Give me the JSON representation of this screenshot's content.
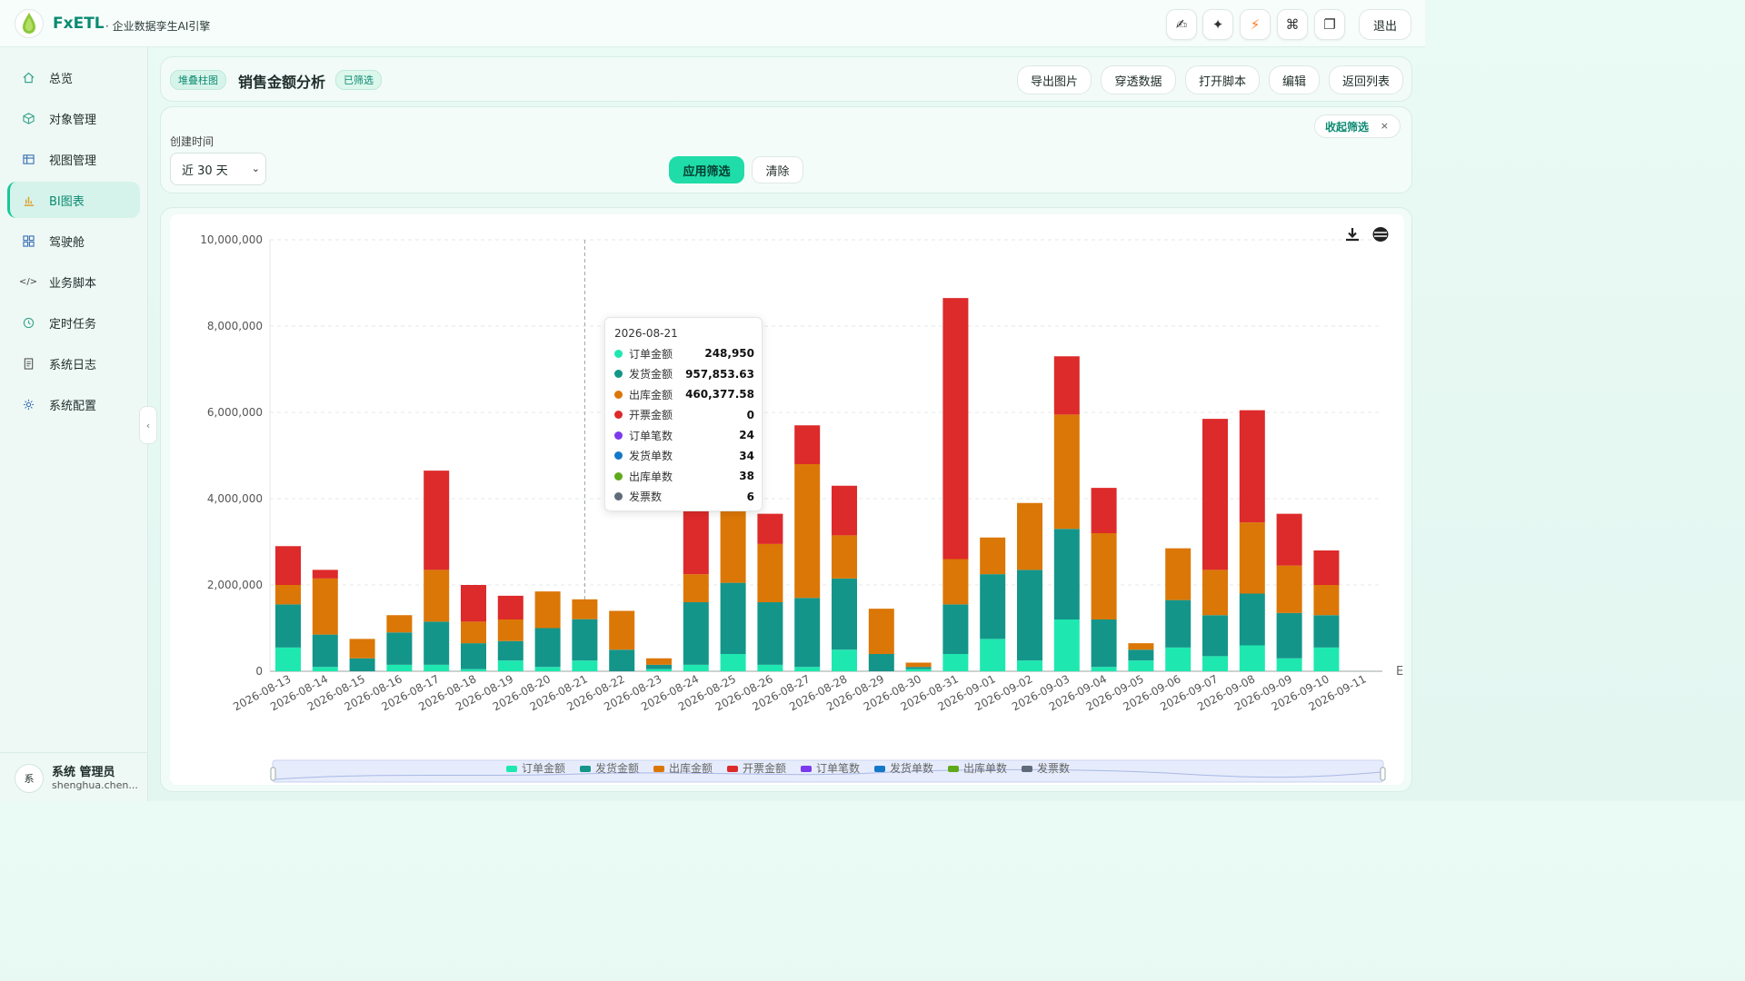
{
  "app": {
    "brand": "FxETL",
    "subtitle": "· 企业数据孪生AI引擎",
    "logout": "退出"
  },
  "toolbar_icons": [
    "signature-icon",
    "sparkle-icon",
    "bolt-icon",
    "command-icon",
    "window-icon"
  ],
  "sidebar": {
    "items": [
      {
        "label": "总览",
        "icon": "home-icon"
      },
      {
        "label": "对象管理",
        "icon": "cube-icon"
      },
      {
        "label": "视图管理",
        "icon": "table-icon"
      },
      {
        "label": "BI图表",
        "icon": "bar-chart-icon",
        "active": true
      },
      {
        "label": "驾驶舱",
        "icon": "grid-icon"
      },
      {
        "label": "业务脚本",
        "icon": "code-icon"
      },
      {
        "label": "定时任务",
        "icon": "clock-icon"
      },
      {
        "label": "系统日志",
        "icon": "doc-icon"
      },
      {
        "label": "系统配置",
        "icon": "gear-icon"
      }
    ],
    "user": {
      "avatar": "系",
      "name": "系统 管理员",
      "email": "shenghua.chen..."
    }
  },
  "header": {
    "type_tag": "堆叠柱图",
    "title": "销售金额分析",
    "filter_tag": "已筛选",
    "buttons": [
      "导出图片",
      "穿透数据",
      "打开脚本",
      "编辑",
      "返回列表"
    ]
  },
  "filter": {
    "label": "创建时间",
    "select_value": "近 30 天",
    "apply": "应用筛选",
    "clear": "清除",
    "collapse": "收起筛选",
    "collapse_x": "×"
  },
  "tooltip": {
    "date": "2026-08-21",
    "rows": [
      {
        "name": "订单金额",
        "value": "248,950",
        "color": "#1ee8b0"
      },
      {
        "name": "发货金额",
        "value": "957,853.63",
        "color": "#14958a"
      },
      {
        "name": "出库金额",
        "value": "460,377.58",
        "color": "#db7707"
      },
      {
        "name": "开票金额",
        "value": "0",
        "color": "#dd2a2a"
      },
      {
        "name": "订单笔数",
        "value": "24",
        "color": "#7c3aed"
      },
      {
        "name": "发货单数",
        "value": "34",
        "color": "#1478c8"
      },
      {
        "name": "出库单数",
        "value": "38",
        "color": "#5eaa1a"
      },
      {
        "name": "发票数",
        "value": "6",
        "color": "#5f6b78"
      }
    ]
  },
  "chart_data": {
    "type": "bar",
    "stacked": true,
    "categories": [
      "2026-08-13",
      "2026-08-14",
      "2026-08-15",
      "2026-08-16",
      "2026-08-17",
      "2026-08-18",
      "2026-08-19",
      "2026-08-20",
      "2026-08-21",
      "2026-08-22",
      "2026-08-23",
      "2026-08-24",
      "2026-08-25",
      "2026-08-26",
      "2026-08-27",
      "2026-08-28",
      "2026-08-29",
      "2026-08-30",
      "2026-08-31",
      "2026-09-01",
      "2026-09-02",
      "2026-09-03",
      "2026-09-04",
      "2026-09-05",
      "2026-09-06",
      "2026-09-07",
      "2026-09-08",
      "2026-09-09",
      "2026-09-10",
      "2026-09-11"
    ],
    "series": [
      {
        "name": "订单金额",
        "color": "#1ee8b0",
        "values": [
          550000,
          100000,
          0,
          150000,
          150000,
          50000,
          250000,
          100000,
          248950,
          0,
          50000,
          150000,
          400000,
          150000,
          100000,
          500000,
          0,
          50000,
          400000,
          750000,
          250000,
          1200000,
          100000,
          250000,
          550000,
          350000,
          600000,
          300000,
          550000,
          0
        ]
      },
      {
        "name": "发货金额",
        "color": "#14958a",
        "values": [
          1000000,
          750000,
          300000,
          750000,
          1000000,
          600000,
          450000,
          900000,
          957853.63,
          500000,
          100000,
          1450000,
          1650000,
          1450000,
          1600000,
          1650000,
          400000,
          50000,
          1150000,
          1500000,
          2100000,
          2100000,
          1100000,
          250000,
          1100000,
          950000,
          1200000,
          1050000,
          750000,
          0
        ]
      },
      {
        "name": "出库金额",
        "color": "#db7707",
        "values": [
          450000,
          1300000,
          450000,
          400000,
          1200000,
          500000,
          500000,
          850000,
          460377.58,
          900000,
          150000,
          650000,
          3100000,
          1350000,
          3100000,
          1000000,
          1050000,
          100000,
          1050000,
          850000,
          1550000,
          2650000,
          2000000,
          150000,
          1200000,
          1050000,
          1650000,
          1100000,
          700000,
          0
        ]
      },
      {
        "name": "开票金额",
        "color": "#dd2a2a",
        "values": [
          900000,
          200000,
          0,
          0,
          2300000,
          850000,
          550000,
          0,
          0,
          0,
          0,
          2800000,
          1850000,
          700000,
          900000,
          1150000,
          0,
          0,
          6050000,
          0,
          0,
          1350000,
          1050000,
          0,
          0,
          3500000,
          2600000,
          1200000,
          800000,
          0
        ]
      }
    ],
    "legend": [
      "订单金额",
      "发货金额",
      "出库金额",
      "开票金额",
      "订单笔数",
      "发货单数",
      "出库单数",
      "发票数"
    ],
    "legend_colors": [
      "#1ee8b0",
      "#14958a",
      "#db7707",
      "#dd2a2a",
      "#7c3aed",
      "#1478c8",
      "#5eaa1a",
      "#5f6b78"
    ],
    "y_ticks": [
      "10,000,000",
      "8,000,000",
      "6,000,000",
      "4,000,000",
      "2,000,000",
      "0"
    ],
    "ylim": [
      0,
      10000000
    ],
    "x_axis_end_label": "E",
    "grid": true
  }
}
